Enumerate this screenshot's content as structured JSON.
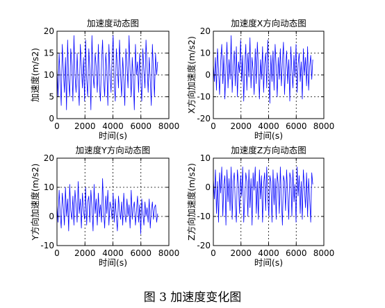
{
  "caption": "图 3  加速度变化图",
  "colors": {
    "series": "#0000ff",
    "axis": "#000000",
    "grid": "#000000"
  },
  "chart_data": [
    {
      "type": "line",
      "title": "加速度动态图",
      "xlabel": "时间(s)",
      "ylabel": "加速度(m/s2)",
      "xlim": [
        0,
        8000
      ],
      "ylim": [
        0,
        20
      ],
      "xticks": [
        0,
        2000,
        4000,
        6000,
        8000
      ],
      "yticks": [
        0,
        5,
        10,
        15,
        20
      ],
      "grid": "dotted",
      "series": [
        {
          "x_range": [
            0,
            7200
          ],
          "values": [
            12,
            5,
            15,
            9,
            3,
            17,
            11,
            6,
            14,
            2,
            18,
            9,
            5,
            16,
            12,
            4,
            19,
            10,
            6,
            15,
            8,
            3,
            17,
            12,
            7,
            14,
            4,
            18,
            9,
            5,
            16,
            11,
            2,
            19,
            10,
            7,
            15,
            12,
            6,
            17,
            8,
            4,
            13,
            18,
            9,
            5,
            15,
            11,
            3,
            17,
            10,
            6,
            14,
            19,
            8,
            4,
            16,
            12,
            7,
            18,
            10,
            5,
            14,
            9,
            3,
            16,
            12,
            7,
            19,
            11,
            5,
            14,
            9,
            2,
            17,
            10,
            13,
            6,
            15,
            9,
            4,
            16,
            11,
            7,
            18,
            12,
            6,
            14,
            9,
            3,
            17,
            11,
            5,
            15,
            10,
            13
          ]
        }
      ]
    },
    {
      "type": "line",
      "title": "加速度X方向动态图",
      "xlabel": "时间(s)",
      "ylabel": "X方向加速度(m/s2)",
      "xlim": [
        0,
        8000
      ],
      "ylim": [
        -20,
        20
      ],
      "xticks": [
        0,
        2000,
        4000,
        6000,
        8000
      ],
      "yticks": [
        -20,
        -10,
        0,
        10,
        20
      ],
      "grid": "dotted",
      "series": [
        {
          "x_range": [
            0,
            7200
          ],
          "values": [
            5,
            -3,
            8,
            -7,
            12,
            2,
            -9,
            6,
            14,
            -4,
            9,
            -11,
            3,
            15,
            -6,
            7,
            -2,
            18,
            -8,
            4,
            11,
            -5,
            13,
            -10,
            6,
            1,
            16,
            -3,
            9,
            -12,
            4,
            14,
            -7,
            10,
            -1,
            17,
            -6,
            8,
            2,
            -9,
            12,
            -4,
            15,
            3,
            -11,
            7,
            -2,
            13,
            -8,
            5,
            10,
            -6,
            16,
            1,
            -13,
            9,
            -3,
            11,
            -7,
            14,
            4,
            -10,
            8,
            -2,
            12,
            -5,
            6,
            15,
            -9,
            3,
            11,
            -4,
            7,
            -12,
            13,
            2,
            -6,
            9,
            -1,
            14,
            -8,
            5,
            10,
            -3,
            6,
            -11,
            12,
            0,
            8,
            -5,
            13,
            -7,
            4,
            9,
            -2,
            7
          ]
        }
      ]
    },
    {
      "type": "line",
      "title": "加速度Y方向动态图",
      "xlabel": "时间(s)",
      "ylabel": "Y方向加速度(m/s2)",
      "xlim": [
        0,
        8000
      ],
      "ylim": [
        -10,
        20
      ],
      "xticks": [
        0,
        2000,
        4000,
        6000,
        8000
      ],
      "yticks": [
        -10,
        0,
        10,
        20
      ],
      "grid": "dotted",
      "series": [
        {
          "x_range": [
            0,
            7200
          ],
          "values": [
            4,
            -2,
            9,
            1,
            -4,
            8,
            3,
            -3,
            10,
            0,
            6,
            -5,
            11,
            2,
            -1,
            7,
            -3,
            9,
            4,
            -2,
            12,
            1,
            6,
            -4,
            8,
            2,
            -1,
            10,
            -3,
            5,
            7,
            -2,
            9,
            3,
            -5,
            11,
            1,
            6,
            -3,
            8,
            0,
            4,
            -2,
            13,
            2,
            -4,
            7,
            1,
            9,
            -3,
            5,
            3,
            -1,
            8,
            -2,
            6,
            0,
            -5,
            7,
            2,
            -1,
            5,
            -3,
            8,
            1,
            -2,
            6,
            0,
            4,
            -4,
            9,
            -1,
            3,
            5,
            -3,
            2,
            7,
            -2,
            4,
            -6,
            6,
            1,
            -3,
            5,
            0,
            3,
            -2,
            6,
            -4,
            2,
            5,
            -1,
            3,
            4,
            -2,
            1
          ]
        }
      ]
    },
    {
      "type": "line",
      "title": "加速度Z方向动态图",
      "xlabel": "时间(s)",
      "ylabel": "Z方向加速度(m/s2)",
      "xlim": [
        0,
        8000
      ],
      "ylim": [
        -20,
        10
      ],
      "xticks": [
        0,
        2000,
        4000,
        6000,
        8000
      ],
      "yticks": [
        -20,
        -10,
        0,
        10
      ],
      "grid": "dotted",
      "series": [
        {
          "x_range": [
            0,
            7200
          ],
          "values": [
            3,
            -4,
            6,
            -9,
            2,
            -12,
            5,
            -2,
            7,
            -10,
            1,
            4,
            -13,
            6,
            -5,
            3,
            -8,
            7,
            -11,
            2,
            5,
            -6,
            -12,
            6,
            1,
            -9,
            4,
            -3,
            7,
            -12,
            -4,
            5,
            2,
            -10,
            6,
            -7,
            3,
            -13,
            5,
            -1,
            7,
            -9,
            2,
            -11,
            6,
            -4,
            4,
            -12,
            1,
            5,
            -8,
            7,
            -3,
            -10,
            4,
            2,
            -12,
            6,
            -6,
            3,
            -11,
            5,
            1,
            -9,
            7,
            -4,
            -13,
            4,
            2,
            -8,
            6,
            -2,
            -11,
            5,
            3,
            -10,
            6,
            -5,
            1,
            -12,
            7,
            -3,
            4,
            -9,
            2,
            -11,
            6,
            0,
            -7,
            5,
            -10,
            3,
            -4,
            -12,
            5,
            1
          ]
        }
      ]
    }
  ]
}
